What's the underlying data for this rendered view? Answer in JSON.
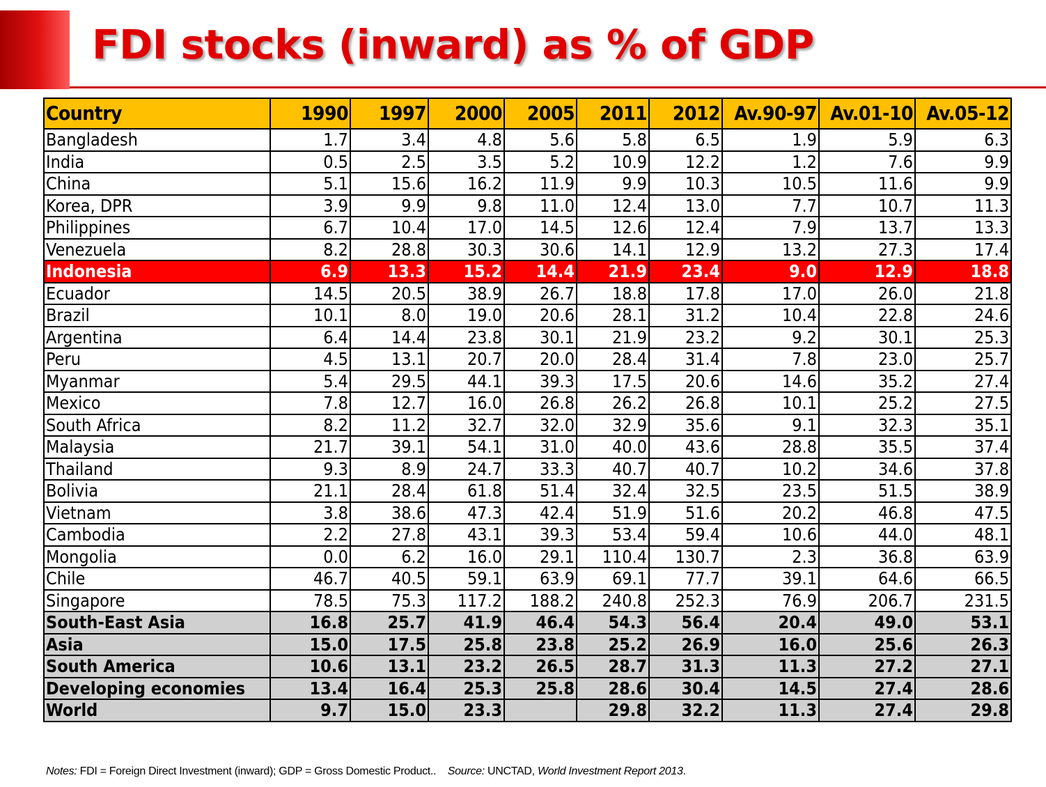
{
  "title": "FDI stocks (inward) as % of GDP",
  "colors": {
    "header_fill": "#ffc000",
    "highlight_fill": "#ff0000",
    "aggregate_fill": "#d0d0d0",
    "title_color": "#e00000"
  },
  "table": {
    "headers": [
      "Country",
      "1990",
      "1997",
      "2000",
      "2005",
      "2011",
      "2012",
      "Av.90-97",
      "Av.01-10",
      "Av.05-12"
    ],
    "rows": [
      {
        "country": "Bangladesh",
        "values": [
          "1.7",
          "3.4",
          "4.8",
          "5.6",
          "5.8",
          "6.5",
          "1.9",
          "5.9",
          "6.3"
        ],
        "style": "normal"
      },
      {
        "country": "India",
        "values": [
          "0.5",
          "2.5",
          "3.5",
          "5.2",
          "10.9",
          "12.2",
          "1.2",
          "7.6",
          "9.9"
        ],
        "style": "normal"
      },
      {
        "country": "China",
        "values": [
          "5.1",
          "15.6",
          "16.2",
          "11.9",
          "9.9",
          "10.3",
          "10.5",
          "11.6",
          "9.9"
        ],
        "style": "normal"
      },
      {
        "country": "Korea, DPR",
        "values": [
          "3.9",
          "9.9",
          "9.8",
          "11.0",
          "12.4",
          "13.0",
          "7.7",
          "10.7",
          "11.3"
        ],
        "style": "normal"
      },
      {
        "country": "Philippines",
        "values": [
          "6.7",
          "10.4",
          "17.0",
          "14.5",
          "12.6",
          "12.4",
          "7.9",
          "13.7",
          "13.3"
        ],
        "style": "normal"
      },
      {
        "country": "Venezuela",
        "values": [
          "8.2",
          "28.8",
          "30.3",
          "30.6",
          "14.1",
          "12.9",
          "13.2",
          "27.3",
          "17.4"
        ],
        "style": "normal"
      },
      {
        "country": "Indonesia",
        "values": [
          "6.9",
          "13.3",
          "15.2",
          "14.4",
          "21.9",
          "23.4",
          "9.0",
          "12.9",
          "18.8"
        ],
        "style": "highlight"
      },
      {
        "country": "Ecuador",
        "values": [
          "14.5",
          "20.5",
          "38.9",
          "26.7",
          "18.8",
          "17.8",
          "17.0",
          "26.0",
          "21.8"
        ],
        "style": "normal"
      },
      {
        "country": "Brazil",
        "values": [
          "10.1",
          "8.0",
          "19.0",
          "20.6",
          "28.1",
          "31.2",
          "10.4",
          "22.8",
          "24.6"
        ],
        "style": "normal"
      },
      {
        "country": "Argentina",
        "values": [
          "6.4",
          "14.4",
          "23.8",
          "30.1",
          "21.9",
          "23.2",
          "9.2",
          "30.1",
          "25.3"
        ],
        "style": "normal"
      },
      {
        "country": "Peru",
        "values": [
          "4.5",
          "13.1",
          "20.7",
          "20.0",
          "28.4",
          "31.4",
          "7.8",
          "23.0",
          "25.7"
        ],
        "style": "normal"
      },
      {
        "country": "Myanmar",
        "values": [
          "5.4",
          "29.5",
          "44.1",
          "39.3",
          "17.5",
          "20.6",
          "14.6",
          "35.2",
          "27.4"
        ],
        "style": "normal"
      },
      {
        "country": "Mexico",
        "values": [
          "7.8",
          "12.7",
          "16.0",
          "26.8",
          "26.2",
          "26.8",
          "10.1",
          "25.2",
          "27.5"
        ],
        "style": "normal"
      },
      {
        "country": "South Africa",
        "values": [
          "8.2",
          "11.2",
          "32.7",
          "32.0",
          "32.9",
          "35.6",
          "9.1",
          "32.3",
          "35.1"
        ],
        "style": "normal"
      },
      {
        "country": "Malaysia",
        "values": [
          "21.7",
          "39.1",
          "54.1",
          "31.0",
          "40.0",
          "43.6",
          "28.8",
          "35.5",
          "37.4"
        ],
        "style": "normal"
      },
      {
        "country": "Thailand",
        "values": [
          "9.3",
          "8.9",
          "24.7",
          "33.3",
          "40.7",
          "40.7",
          "10.2",
          "34.6",
          "37.8"
        ],
        "style": "normal"
      },
      {
        "country": "Bolivia",
        "values": [
          "21.1",
          "28.4",
          "61.8",
          "51.4",
          "32.4",
          "32.5",
          "23.5",
          "51.5",
          "38.9"
        ],
        "style": "normal"
      },
      {
        "country": "Vietnam",
        "values": [
          "3.8",
          "38.6",
          "47.3",
          "42.4",
          "51.9",
          "51.6",
          "20.2",
          "46.8",
          "47.5"
        ],
        "style": "normal"
      },
      {
        "country": "Cambodia",
        "values": [
          "2.2",
          "27.8",
          "43.1",
          "39.3",
          "53.4",
          "59.4",
          "10.6",
          "44.0",
          "48.1"
        ],
        "style": "normal"
      },
      {
        "country": "Mongolia",
        "values": [
          "0.0",
          "6.2",
          "16.0",
          "29.1",
          "110.4",
          "130.7",
          "2.3",
          "36.8",
          "63.9"
        ],
        "style": "normal"
      },
      {
        "country": "Chile",
        "values": [
          "46.7",
          "40.5",
          "59.1",
          "63.9",
          "69.1",
          "77.7",
          "39.1",
          "64.6",
          "66.5"
        ],
        "style": "normal"
      },
      {
        "country": "Singapore",
        "values": [
          "78.5",
          "75.3",
          "117.2",
          "188.2",
          "240.8",
          "252.3",
          "76.9",
          "206.7",
          "231.5"
        ],
        "style": "normal"
      },
      {
        "country": "South-East Asia",
        "values": [
          "16.8",
          "25.7",
          "41.9",
          "46.4",
          "54.3",
          "56.4",
          "20.4",
          "49.0",
          "53.1"
        ],
        "style": "aggregate"
      },
      {
        "country": "Asia",
        "values": [
          "15.0",
          "17.5",
          "25.8",
          "23.8",
          "25.2",
          "26.9",
          "16.0",
          "25.6",
          "26.3"
        ],
        "style": "aggregate"
      },
      {
        "country": "South America",
        "values": [
          "10.6",
          "13.1",
          "23.2",
          "26.5",
          "28.7",
          "31.3",
          "11.3",
          "27.2",
          "27.1"
        ],
        "style": "aggregate"
      },
      {
        "country": "Developing economies",
        "values": [
          "13.4",
          "16.4",
          "25.3",
          "25.8",
          "28.6",
          "30.4",
          "14.5",
          "27.4",
          "28.6"
        ],
        "style": "aggregate"
      },
      {
        "country": "World",
        "values": [
          "9.7",
          "15.0",
          "23.3",
          "",
          "29.8",
          "32.2",
          "11.3",
          "27.4",
          "29.8"
        ],
        "style": "aggregate"
      }
    ]
  },
  "notes": {
    "notes_label": "Notes:",
    "notes_text": " FDI = Foreign Direct Investment (inward); GDP = Gross Domestic Product..",
    "source_label": "Source:",
    "source_text": " UNCTAD, ",
    "source_title": "World Investment Report 2013",
    "source_end": "."
  }
}
